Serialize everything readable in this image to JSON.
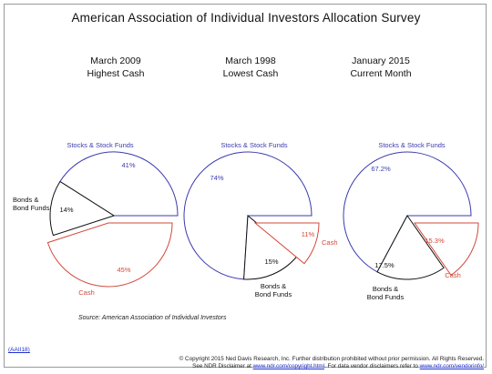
{
  "title": "American Association of Individual Investors Allocation Survey",
  "charts": [
    {
      "line1": "March 2009",
      "line2": "Highest Cash"
    },
    {
      "line1": "March 1998",
      "line2": "Lowest Cash"
    },
    {
      "line1": "January 2015",
      "line2": "Current Month"
    }
  ],
  "colors": {
    "stocks": "#3b3bb0",
    "bonds": "#111111",
    "cash": "#d24a3a"
  },
  "chart_data": [
    {
      "type": "pie",
      "title": "March 2009 Highest Cash",
      "slices": [
        {
          "label": "Stocks & Stock Funds",
          "value": 41,
          "value_label": "41%"
        },
        {
          "label": "Bonds & Bond Funds",
          "value": 14,
          "value_label": "14%"
        },
        {
          "label": "Cash",
          "value": 45,
          "value_label": "45%"
        }
      ]
    },
    {
      "type": "pie",
      "title": "March 1998 Lowest Cash",
      "slices": [
        {
          "label": "Stocks & Stock Funds",
          "value": 74,
          "value_label": "74%"
        },
        {
          "label": "Bonds & Bond Funds",
          "value": 15,
          "value_label": "15%"
        },
        {
          "label": "Cash",
          "value": 11,
          "value_label": "11%"
        }
      ]
    },
    {
      "type": "pie",
      "title": "January 2015 Current Month",
      "slices": [
        {
          "label": "Stocks & Stock Funds",
          "value": 67.2,
          "value_label": "67.2%"
        },
        {
          "label": "Bonds & Bond Funds",
          "value": 17.5,
          "value_label": "17.5%"
        },
        {
          "label": "Cash",
          "value": 15.3,
          "value_label": "15.3%"
        }
      ]
    }
  ],
  "source": "Source: American Association of Individual Investors",
  "code": "(AAII18)",
  "copyright": {
    "line1": "© Copyright 2015 Ned Davis Research, Inc.  Further distribution prohibited without prior permission.  All Rights Reserved.",
    "line2_pre": "See NDR Disclaimer at ",
    "line2_link1": "www.ndr.com/copyright.html",
    "line2_mid": ". For data vendor disclaimers refer to ",
    "line2_link2": "www.ndr.com/vendorinfo/"
  }
}
